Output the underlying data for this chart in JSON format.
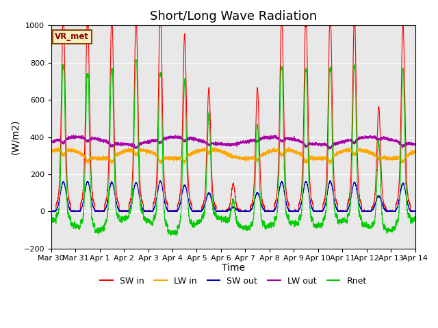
{
  "title": "Short/Long Wave Radiation",
  "ylabel": "(W/m2)",
  "xlabel": "Time",
  "ylim": [
    -200,
    1000
  ],
  "yticks": [
    -200,
    0,
    200,
    400,
    600,
    800,
    1000
  ],
  "n_days": 15,
  "colors": {
    "SW_in": "#ff0000",
    "LW_in": "#ffa500",
    "SW_out": "#0000bb",
    "LW_out": "#aa00aa",
    "Rnet": "#00cc00"
  },
  "legend_labels": [
    "SW in",
    "LW in",
    "SW out",
    "LW out",
    "Rnet"
  ],
  "label_box_text": "VR_met",
  "background_color": "#e8e8e8",
  "title_fontsize": 13,
  "axis_fontsize": 10,
  "tick_fontsize": 8,
  "tick_labels": [
    "Mar 30",
    "Mar 31",
    "Apr 1",
    "Apr 2",
    "Apr 3",
    "Apr 4",
    "Apr 5",
    "Apr 6",
    "Apr 7",
    "Apr 8",
    "Apr 9",
    "Apr 10",
    "Apr 11",
    "Apr 12",
    "Apr 13",
    "Apr 14"
  ]
}
